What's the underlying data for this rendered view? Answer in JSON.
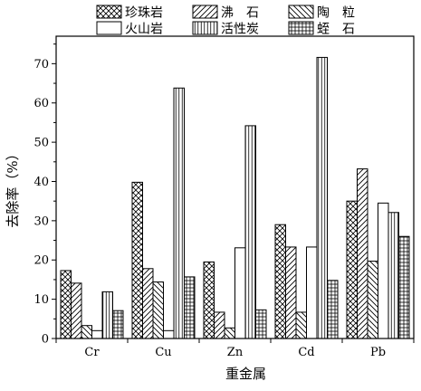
{
  "chart_data": {
    "type": "bar",
    "xlabel": "重金属",
    "ylabel": "去除率（%）",
    "ylim": [
      0,
      77
    ],
    "yticks": [
      0,
      10,
      20,
      30,
      40,
      50,
      60,
      70
    ],
    "grid": false,
    "legend_position": "top",
    "categories": [
      "Cr",
      "Cu",
      "Zn",
      "Cd",
      "Pb"
    ],
    "series": [
      {
        "name": "珍珠岩",
        "pattern": "crosshatch",
        "values": [
          17.3,
          39.8,
          19.5,
          29.0,
          35.0
        ]
      },
      {
        "name": "沸　石",
        "pattern": "diagonal-up",
        "values": [
          14.1,
          17.8,
          6.7,
          23.3,
          43.2
        ]
      },
      {
        "name": "陶　粒",
        "pattern": "diagonal-down",
        "values": [
          3.3,
          14.4,
          2.7,
          6.7,
          19.7
        ]
      },
      {
        "name": "火山岩",
        "pattern": "empty",
        "values": [
          2.0,
          2.0,
          23.1,
          23.3,
          34.5
        ]
      },
      {
        "name": "活性炭",
        "pattern": "vertical",
        "values": [
          11.9,
          63.8,
          54.2,
          71.6,
          32.1
        ]
      },
      {
        "name": "蛭　石",
        "pattern": "grid",
        "values": [
          7.1,
          15.7,
          7.3,
          14.8,
          26.0
        ]
      }
    ]
  }
}
